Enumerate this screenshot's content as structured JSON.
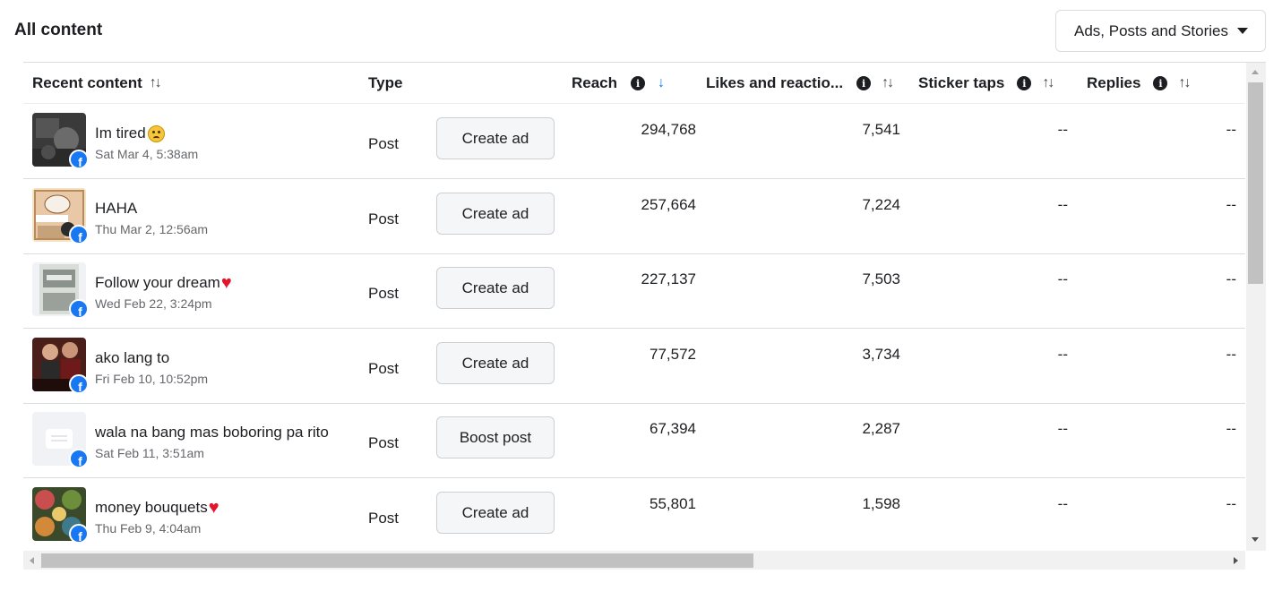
{
  "header": {
    "title": "All content",
    "filter_label": "Ads, Posts and Stories",
    "filter_icon": "caret-down-icon"
  },
  "columns": {
    "recent_content": "Recent content",
    "type": "Type",
    "reach": "Reach",
    "likes": "Likes and reactio...",
    "sticker_taps": "Sticker taps",
    "replies": "Replies",
    "sort_glyph": "↑↓",
    "sort_active_glyph": "↓",
    "info_glyph": "i"
  },
  "rows": [
    {
      "title": "Im tired",
      "emoji": "sad-face-emoji",
      "date": "Sat Mar 4, 5:38am",
      "type": "Post",
      "action": "Create ad",
      "reach": "294,768",
      "likes": "7,541",
      "sticker_taps": "--",
      "replies": "--"
    },
    {
      "title": "HAHA",
      "emoji": "",
      "date": "Thu Mar 2, 12:56am",
      "type": "Post",
      "action": "Create ad",
      "reach": "257,664",
      "likes": "7,224",
      "sticker_taps": "--",
      "replies": "--"
    },
    {
      "title": "Follow your dream",
      "emoji": "heart-emoji",
      "date": "Wed Feb 22, 3:24pm",
      "type": "Post",
      "action": "Create ad",
      "reach": "227,137",
      "likes": "7,503",
      "sticker_taps": "--",
      "replies": "--"
    },
    {
      "title": "ako lang to",
      "emoji": "",
      "date": "Fri Feb 10, 10:52pm",
      "type": "Post",
      "action": "Create ad",
      "reach": "77,572",
      "likes": "3,734",
      "sticker_taps": "--",
      "replies": "--"
    },
    {
      "title": "wala na bang mas boboring pa rito",
      "emoji": "",
      "date": "Sat Feb 11, 3:51am",
      "type": "Post",
      "action": "Boost post",
      "reach": "67,394",
      "likes": "2,287",
      "sticker_taps": "--",
      "replies": "--"
    },
    {
      "title": "money bouquets",
      "emoji": "heart-emoji",
      "date": "Thu Feb 9, 4:04am",
      "type": "Post",
      "action": "Create ad",
      "reach": "55,801",
      "likes": "1,598",
      "sticker_taps": "--",
      "replies": "--"
    }
  ],
  "badge": {
    "glyph": "f",
    "icon": "facebook-icon"
  },
  "colors": {
    "accent": "#1877f2",
    "text": "#1c1e21",
    "muted": "#65676b",
    "border": "#dadde1",
    "button_bg": "#f5f6f7",
    "heart": "#e2162b"
  }
}
